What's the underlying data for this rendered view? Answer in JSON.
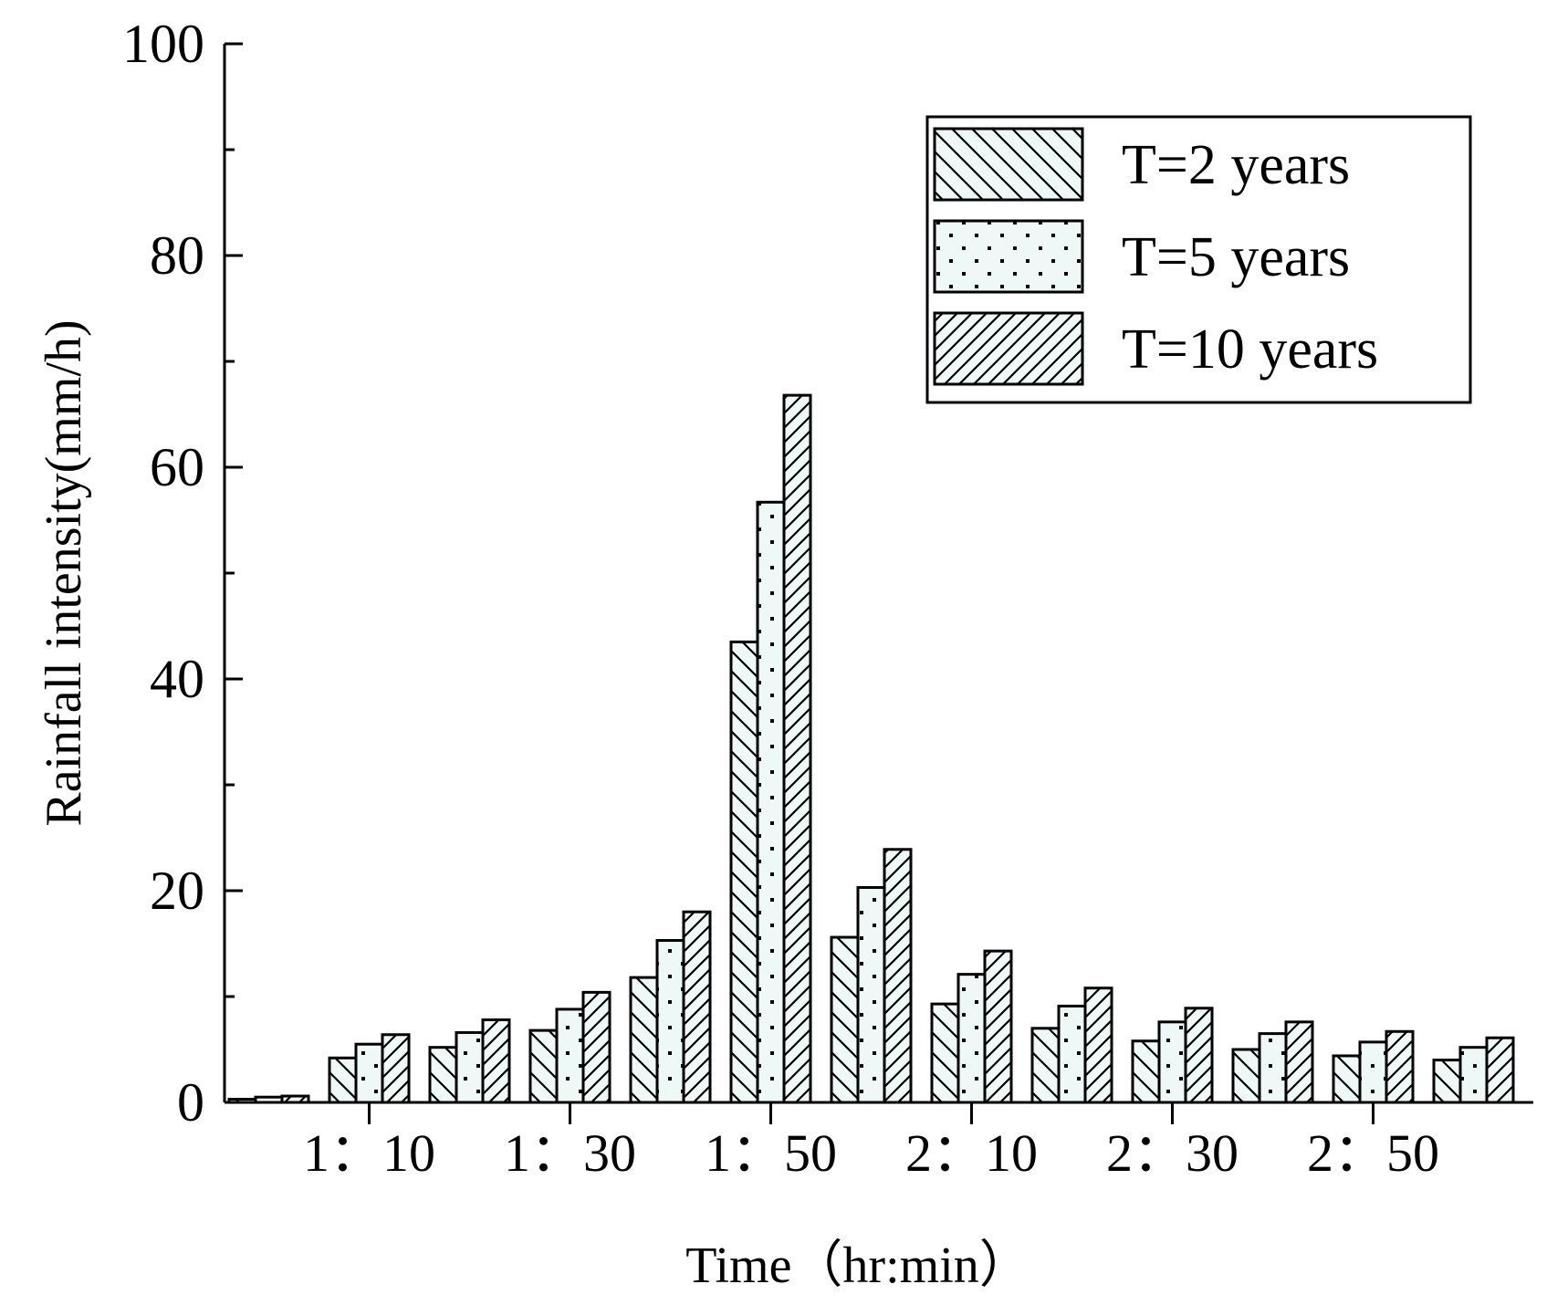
{
  "chart_data": {
    "type": "bar",
    "xlabel": "Time（hr:min）",
    "ylabel": "Rainfall intensity(mm/h)",
    "ylim": [
      0,
      100
    ],
    "yticks": [
      "0",
      "20",
      "40",
      "60",
      "80",
      "100"
    ],
    "xtick_labels": [
      "1：10",
      "1：30",
      "1：50",
      "2：10",
      "2：30",
      "2：50"
    ],
    "legend_position": "top-right",
    "series": [
      {
        "name": "T=2 years",
        "pattern": "backslash-hatch",
        "values": [
          0.3,
          4.2,
          5.2,
          6.8,
          11.8,
          43.5,
          15.6,
          9.3,
          7.0,
          5.8,
          5.0,
          4.4,
          4.0
        ]
      },
      {
        "name": "T=5 years",
        "pattern": "dots",
        "values": [
          0.5,
          5.5,
          6.6,
          8.8,
          15.3,
          56.7,
          20.3,
          12.1,
          9.1,
          7.6,
          6.5,
          5.7,
          5.2
        ]
      },
      {
        "name": "T=10 years",
        "pattern": "forward-hatch",
        "values": [
          0.6,
          6.4,
          7.8,
          10.4,
          18.0,
          66.8,
          23.9,
          14.3,
          10.8,
          8.9,
          7.6,
          6.7,
          6.1
        ]
      }
    ]
  }
}
